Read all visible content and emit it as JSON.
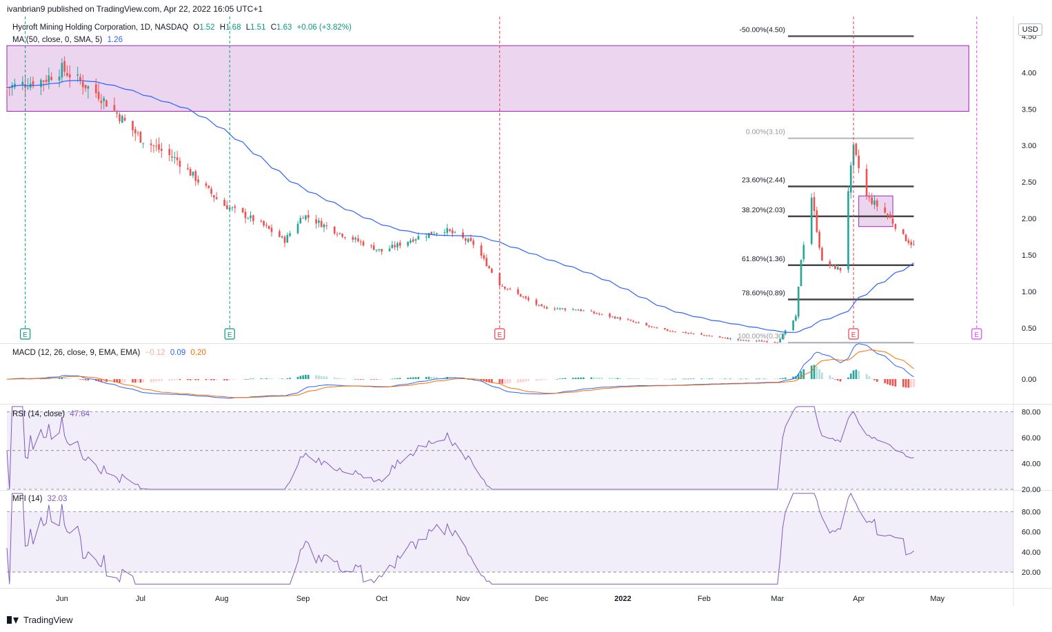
{
  "publisher": "ivanbrian9 published on TradingView.com, Apr 22, 2022 16:05 UTC+1",
  "footer": {
    "brand": "TradingView"
  },
  "currency": "USD",
  "legend": {
    "symbol": "Hycroft Mining Holding Corporation, 1D, NASDAQ",
    "o_label": "O",
    "o": "1.52",
    "h_label": "H",
    "h": "1.68",
    "l_label": "L",
    "l": "1.51",
    "c_label": "C",
    "c": "1.63",
    "chg": "+0.06 (+3.82%)",
    "ma_label": "MA (50, close, 0, SMA, 5)",
    "ma_value": "1.26",
    "macd_label": "MACD (12, 26, close, 9, EMA, EMA)",
    "macd_hist": "−0.12",
    "macd_line": "0.09",
    "macd_signal": "0.20",
    "rsi_label": "RSI (14, close)",
    "rsi_value": "47.64",
    "mfi_label": "MFI (14)",
    "mfi_value": "32.03"
  },
  "colors": {
    "up": "#26a69a",
    "down": "#ef5350",
    "ma": "#2962ff",
    "macd": "#2962ff",
    "signal": "#ff6d00",
    "osc": "#7e57c2",
    "zone": "#e1bee7",
    "zone_border": "#9c27b0",
    "earnings_green": "#089981",
    "earnings_red": "#f23645",
    "earnings_purple": "#e040fb"
  },
  "chart_data": [
    {
      "type": "candlestick",
      "pane": "price",
      "ylim": [
        0.3,
        4.75
      ],
      "y_ticks": [
        "4.50",
        "4.00",
        "3.50",
        "3.00",
        "2.50",
        "2.00",
        "1.50",
        "1.00",
        "0.50"
      ],
      "x_ticks": [
        "Jun",
        "Jul",
        "Aug",
        "Sep",
        "Oct",
        "Nov",
        "Dec",
        "2022",
        "Feb",
        "Mar",
        "Apr",
        "May"
      ],
      "moving_average": {
        "name": "MA (50, close, 0, SMA, 5)",
        "last": 1.26
      },
      "fibonacci": [
        {
          "label": "-50.00%(4.50)",
          "price": 4.5
        },
        {
          "label": "0.00%(3.10)",
          "price": 3.1
        },
        {
          "label": "23.60%(2.44)",
          "price": 2.44
        },
        {
          "label": "38.20%(2.03)",
          "price": 2.03
        },
        {
          "label": "61.80%(1.36)",
          "price": 1.36
        },
        {
          "label": "78.60%(0.89)",
          "price": 0.89
        },
        {
          "label": "100.00%(0.30)",
          "price": 0.3
        }
      ],
      "zones": [
        {
          "top": 4.37,
          "bottom": 3.47,
          "from": "2021-05-11",
          "to": "2022-05-13"
        },
        {
          "top": 2.31,
          "bottom": 1.89,
          "from": "2022-04-01",
          "to": "2022-04-14"
        }
      ],
      "earnings": [
        {
          "date": "2021-05-18",
          "kind": "E",
          "color": "green"
        },
        {
          "date": "2021-08-04",
          "kind": "E",
          "color": "green"
        },
        {
          "date": "2021-11-15",
          "kind": "E",
          "color": "red"
        },
        {
          "date": "2022-03-30",
          "kind": "E",
          "color": "red"
        },
        {
          "date": "2022-05-16",
          "kind": "E",
          "color": "purple"
        }
      ],
      "close_series": [
        [
          "2021-05-11",
          3.8
        ],
        [
          "2021-05-25",
          3.9
        ],
        [
          "2021-06-01",
          4.05
        ],
        [
          "2021-06-15",
          3.7
        ],
        [
          "2021-07-01",
          3.1
        ],
        [
          "2021-07-15",
          2.8
        ],
        [
          "2021-08-01",
          2.2
        ],
        [
          "2021-08-15",
          1.95
        ],
        [
          "2021-08-25",
          1.7
        ],
        [
          "2021-09-01",
          2.05
        ],
        [
          "2021-09-15",
          1.8
        ],
        [
          "2021-10-01",
          1.55
        ],
        [
          "2021-10-15",
          1.75
        ],
        [
          "2021-10-25",
          1.85
        ],
        [
          "2021-11-05",
          1.65
        ],
        [
          "2021-11-15",
          1.1
        ],
        [
          "2021-12-01",
          0.78
        ],
        [
          "2021-12-15",
          0.75
        ],
        [
          "2022-01-01",
          0.62
        ],
        [
          "2022-01-15",
          0.48
        ],
        [
          "2022-02-01",
          0.4
        ],
        [
          "2022-02-15",
          0.33
        ],
        [
          "2022-03-01",
          0.31
        ],
        [
          "2022-03-08",
          0.65
        ],
        [
          "2022-03-10",
          1.45
        ],
        [
          "2022-03-14",
          2.3
        ],
        [
          "2022-03-18",
          1.4
        ],
        [
          "2022-03-25",
          1.3
        ],
        [
          "2022-03-28",
          2.4
        ],
        [
          "2022-03-30",
          2.95
        ],
        [
          "2022-04-04",
          2.3
        ],
        [
          "2022-04-12",
          2.05
        ],
        [
          "2022-04-18",
          1.75
        ],
        [
          "2022-04-22",
          1.63
        ]
      ]
    },
    {
      "type": "line",
      "pane": "macd",
      "ylim": [
        -0.35,
        0.5
      ],
      "y_ticks": [
        "0.00"
      ],
      "series": [
        {
          "name": "MACD",
          "last": 0.09
        },
        {
          "name": "Signal",
          "last": 0.2
        },
        {
          "name": "Histogram",
          "last": -0.12
        }
      ]
    },
    {
      "type": "line",
      "pane": "rsi",
      "ylim": [
        20,
        85
      ],
      "y_ticks": [
        "80.00",
        "60.00",
        "40.00",
        "20.00"
      ],
      "levels": [
        80,
        50,
        20
      ],
      "last": 47.64
    },
    {
      "type": "line",
      "pane": "mfi",
      "ylim": [
        5,
        100
      ],
      "y_ticks": [
        "80.00",
        "60.00",
        "40.00",
        "20.00"
      ],
      "levels": [
        80,
        20
      ],
      "last": 32.03
    }
  ]
}
